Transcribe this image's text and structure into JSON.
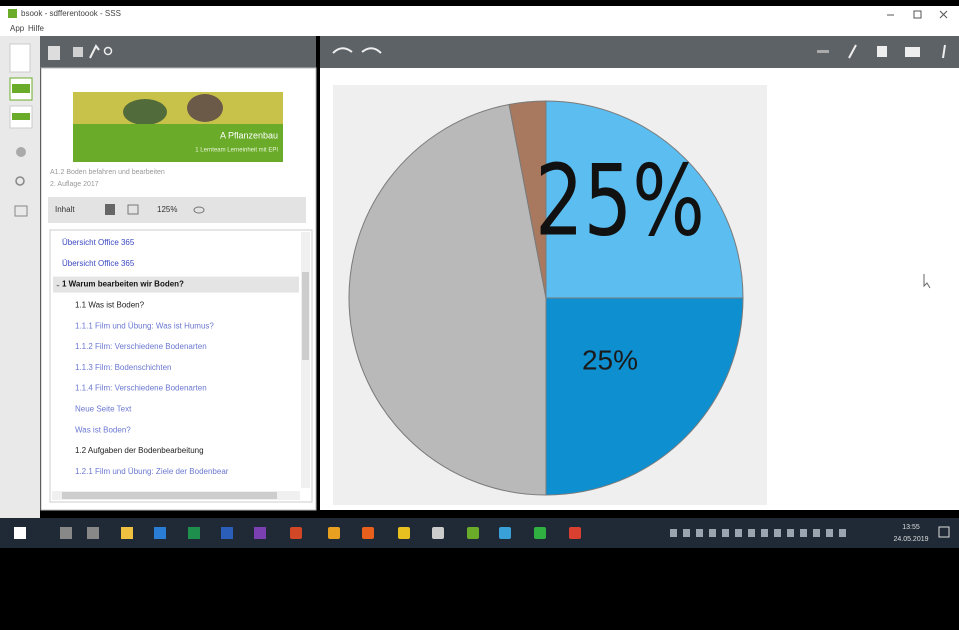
{
  "window": {
    "title": "bsook - sdfferentoook - SSS",
    "menu": [
      "App",
      "Hilfe"
    ]
  },
  "sidebar": {
    "banner_title": "A Pflanzenbau",
    "banner_subtitle": "1 Lernteam Lerneinheit mit EPI",
    "book_lines": [
      "A1.2 Boden befahren und bearbeiten",
      "2. Auflage 2017"
    ],
    "toolbar": {
      "view": "Inhalt",
      "zoom": "125%"
    },
    "toc": [
      {
        "text": "Übersicht Office 365",
        "indent": 0,
        "color": "#3a48c0",
        "bold": false
      },
      {
        "text": "Übersicht Office 365",
        "indent": 0,
        "color": "#3a48c0",
        "bold": false
      },
      {
        "text": "1 Warum bearbeiten wir Boden?",
        "indent": 0,
        "color": "#111111",
        "bold": true
      },
      {
        "text": "1.1 Was ist Boden?",
        "indent": 1,
        "color": "#222222",
        "bold": false
      },
      {
        "text": "1.1.1 Film und Übung: Was ist Humus?",
        "indent": 1,
        "color": "#6b78d0",
        "bold": false
      },
      {
        "text": "1.1.2 Film: Verschiedene Bodenarten",
        "indent": 1,
        "color": "#6b78d0",
        "bold": false
      },
      {
        "text": "1.1.3 Film: Bodenschichten",
        "indent": 1,
        "color": "#6b78d0",
        "bold": false
      },
      {
        "text": "1.1.4 Film: Verschiedene Bodenarten",
        "indent": 1,
        "color": "#6b78d0",
        "bold": false
      },
      {
        "text": "Neue Seite Text",
        "indent": 1,
        "color": "#6b78d0",
        "bold": false
      },
      {
        "text": "Was ist Boden?",
        "indent": 1,
        "color": "#6b78d0",
        "bold": false
      },
      {
        "text": "1.2 Aufgaben der Bodenbearbeitung",
        "indent": 1,
        "color": "#222222",
        "bold": false
      },
      {
        "text": "1.2.1 Film und Übung: Ziele der Bodenbear",
        "indent": 1,
        "color": "#6b78d0",
        "bold": false
      }
    ]
  },
  "slide": {
    "chart": {
      "type": "pie",
      "values": [
        25,
        25,
        47,
        3
      ],
      "colors": [
        "#5bbdf0",
        "#0e8fd0",
        "#b9b9b9",
        "#a8795e"
      ]
    },
    "handwritten_label": "25%",
    "typed_label": "25%"
  },
  "taskbar": {
    "time": "13:55",
    "date": "24.05.2019"
  }
}
